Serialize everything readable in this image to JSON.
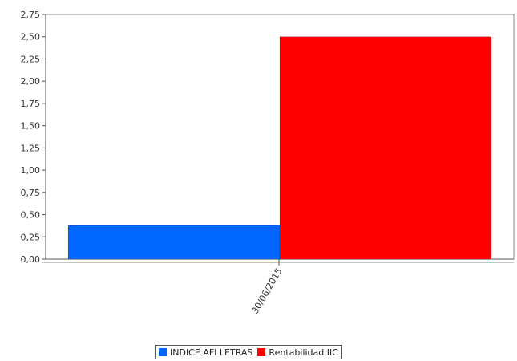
{
  "chart_data": {
    "type": "bar",
    "categories": [
      "30/06/2015"
    ],
    "series": [
      {
        "name": "INDICE AFI LETRAS",
        "values": [
          0.38
        ],
        "color": "#0066ff"
      },
      {
        "name": "Rentabilidad IIC",
        "values": [
          2.5
        ],
        "color": "#ff0000"
      }
    ],
    "ylim": [
      0,
      2.75
    ],
    "yticks": [
      "0,00",
      "0,25",
      "0,50",
      "0,75",
      "1,00",
      "1,25",
      "1,50",
      "1,75",
      "2,00",
      "2,25",
      "2,50",
      "2,75"
    ],
    "grid": false,
    "legend_position": "bottom"
  }
}
